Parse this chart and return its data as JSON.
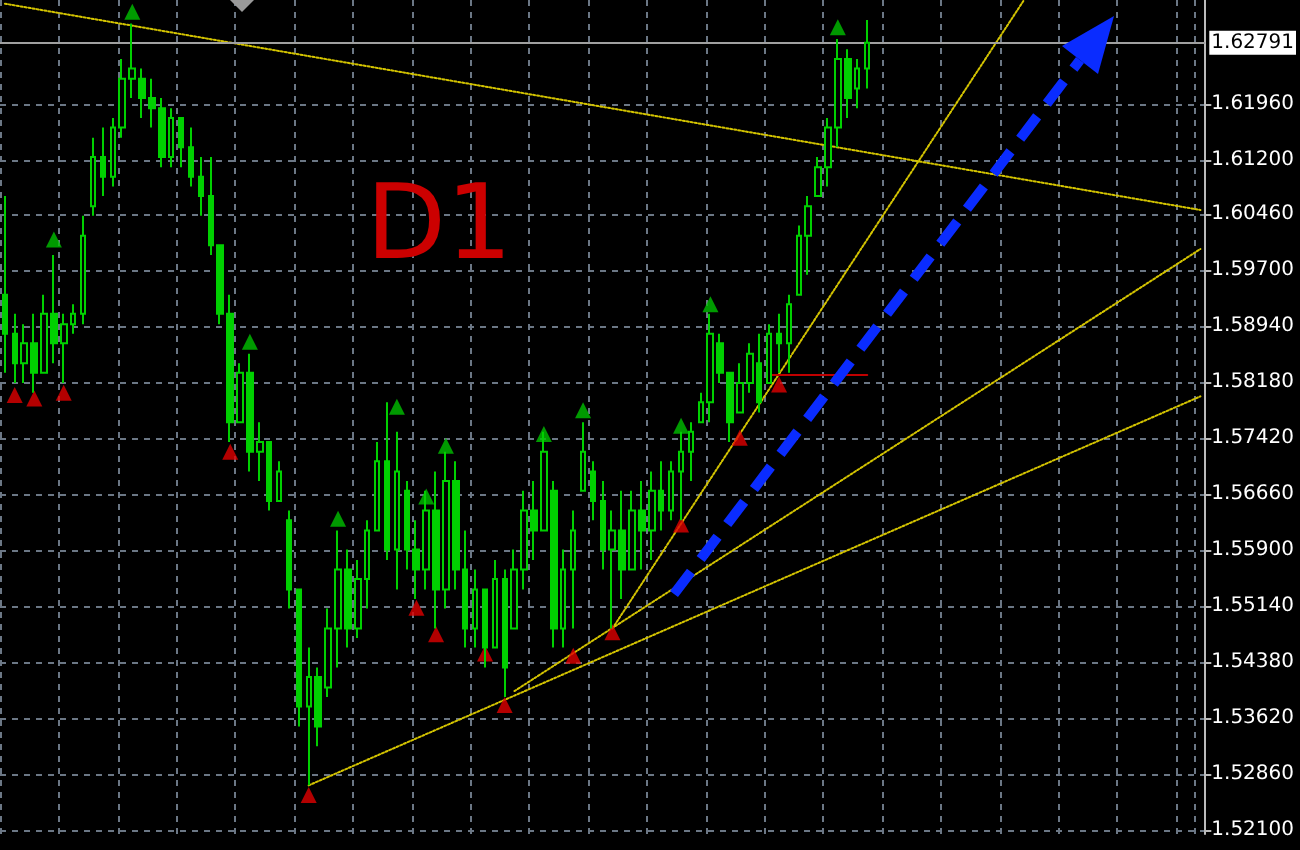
{
  "chart_data": {
    "type": "candlestick",
    "color": "#00d000",
    "annotations": [
      "D1"
    ],
    "grid": true,
    "tick_labels": "y",
    "categories": [
      null,
      null,
      null,
      null,
      null,
      null,
      null,
      null,
      null,
      null,
      null,
      null,
      null,
      null,
      null,
      null,
      null,
      null,
      null,
      null,
      null,
      null,
      null,
      null,
      null,
      null,
      null,
      null,
      null,
      null,
      null,
      null,
      null,
      null,
      null,
      null,
      null,
      null,
      null,
      null,
      null,
      null,
      null,
      null,
      null,
      null,
      null,
      null,
      null,
      null,
      null,
      null,
      null,
      null,
      null,
      null,
      null,
      null,
      null,
      null,
      null,
      null,
      null,
      null,
      null,
      null,
      null,
      null,
      null,
      null,
      null,
      null,
      null,
      null,
      null,
      null,
      null,
      null,
      null,
      null,
      null,
      null,
      null,
      null,
      null,
      null,
      null,
      null,
      null,
      null,
      null,
      null,
      null,
      null,
      null,
      null,
      null,
      null,
      null,
      null,
      null,
      null,
      null,
      null,
      null,
      null,
      null,
      null,
      null,
      null,
      null,
      null,
      null,
      null,
      null,
      null,
      null,
      null,
      null,
      null,
      null,
      null,
      null
    ],
    "ylim": [
      1.5205,
      1.6337
    ],
    "yticks": [
      {
        "value": 1.521,
        "label": "1.52100"
      },
      {
        "value": 1.5286,
        "label": "1.52860"
      },
      {
        "value": 1.5362,
        "label": "1.53620"
      },
      {
        "value": 1.5438,
        "label": "1.54380"
      },
      {
        "value": 1.5514,
        "label": "1.55140"
      },
      {
        "value": 1.559,
        "label": "1.55900"
      },
      {
        "value": 1.5666,
        "label": "1.56660"
      },
      {
        "value": 1.5742,
        "label": "1.57420"
      },
      {
        "value": 1.5818,
        "label": "1.58180"
      },
      {
        "value": 1.5894,
        "label": "1.58940"
      },
      {
        "value": 1.597,
        "label": "1.59700"
      },
      {
        "value": 1.6046,
        "label": "1.60460"
      },
      {
        "value": 1.612,
        "label": "1.61200"
      },
      {
        "value": 1.6196,
        "label": "1.61960"
      }
    ],
    "ref_lines": [
      {
        "axis": "y",
        "value": 1.62791,
        "label": "1.62791",
        "color": "#a0a0a0",
        "line_style": "solid"
      }
    ],
    "ohlc": [
      [
        1.5937,
        1.6071,
        1.5831,
        1.5884
      ],
      [
        1.5884,
        1.5911,
        1.5817,
        1.5844
      ],
      [
        1.5844,
        1.5897,
        1.5817,
        1.5871
      ],
      [
        1.5871,
        1.5911,
        1.5804,
        1.5831
      ],
      [
        1.5831,
        1.5937,
        1.5831,
        1.5911
      ],
      [
        1.5911,
        1.5991,
        1.5844,
        1.5871
      ],
      [
        1.5871,
        1.5911,
        1.5817,
        1.5897
      ],
      [
        1.5897,
        1.5924,
        1.5884,
        1.5911
      ],
      [
        1.5911,
        1.6044,
        1.5897,
        1.6017
      ],
      [
        1.6057,
        1.615,
        1.6044,
        1.6124
      ],
      [
        1.6124,
        1.6164,
        1.6071,
        1.6097
      ],
      [
        1.6097,
        1.6177,
        1.6084,
        1.6164
      ],
      [
        1.6164,
        1.6257,
        1.615,
        1.623
      ],
      [
        1.623,
        1.6305,
        1.6204,
        1.6244
      ],
      [
        1.623,
        1.6244,
        1.6177,
        1.6204
      ],
      [
        1.6204,
        1.623,
        1.6164,
        1.619
      ],
      [
        1.619,
        1.6204,
        1.611,
        1.6124
      ],
      [
        1.6124,
        1.619,
        1.611,
        1.6177
      ],
      [
        1.6177,
        1.6177,
        1.611,
        1.6137
      ],
      [
        1.6137,
        1.6164,
        1.6084,
        1.6097
      ],
      [
        1.6097,
        1.6124,
        1.6044,
        1.6071
      ],
      [
        1.6071,
        1.6124,
        1.5991,
        1.6004
      ],
      [
        1.6004,
        1.6004,
        1.5897,
        1.5911
      ],
      [
        1.5911,
        1.5937,
        1.5737,
        1.5764
      ],
      [
        1.5764,
        1.5844,
        1.5764,
        1.5831
      ],
      [
        1.5831,
        1.5857,
        1.5697,
        1.5724
      ],
      [
        1.5724,
        1.5764,
        1.5684,
        1.5737
      ],
      [
        1.5737,
        1.5737,
        1.5644,
        1.5657
      ],
      [
        1.5657,
        1.5711,
        1.5657,
        1.5697
      ],
      [
        1.5631,
        1.5644,
        1.5511,
        1.5537
      ],
      [
        1.5537,
        1.5537,
        1.5351,
        1.5378
      ],
      [
        1.5378,
        1.5458,
        1.5271,
        1.5418
      ],
      [
        1.5418,
        1.5431,
        1.5324,
        1.5351
      ],
      [
        1.5404,
        1.5511,
        1.5391,
        1.5484
      ],
      [
        1.5484,
        1.5617,
        1.5431,
        1.5564
      ],
      [
        1.5564,
        1.5591,
        1.5458,
        1.5484
      ],
      [
        1.5484,
        1.5577,
        1.5471,
        1.5551
      ],
      [
        1.5551,
        1.5631,
        1.5511,
        1.5617
      ],
      [
        1.5617,
        1.5737,
        1.5617,
        1.5711
      ],
      [
        1.5711,
        1.5791,
        1.5577,
        1.5591
      ],
      [
        1.5591,
        1.5751,
        1.5537,
        1.5697
      ],
      [
        1.5671,
        1.5684,
        1.5564,
        1.5591
      ],
      [
        1.5591,
        1.5631,
        1.5524,
        1.5564
      ],
      [
        1.5564,
        1.5671,
        1.5537,
        1.5644
      ],
      [
        1.5644,
        1.5697,
        1.5484,
        1.5537
      ],
      [
        1.5537,
        1.5724,
        1.5511,
        1.5684
      ],
      [
        1.5684,
        1.5711,
        1.5537,
        1.5564
      ],
      [
        1.5564,
        1.5617,
        1.5458,
        1.5484
      ],
      [
        1.5484,
        1.5564,
        1.5458,
        1.5537
      ],
      [
        1.5537,
        1.5537,
        1.5431,
        1.5458
      ],
      [
        1.5458,
        1.5577,
        1.5458,
        1.5551
      ],
      [
        1.5551,
        1.5564,
        1.5391,
        1.5431
      ],
      [
        1.5484,
        1.5591,
        1.5484,
        1.5564
      ],
      [
        1.5564,
        1.5671,
        1.5537,
        1.5644
      ],
      [
        1.5644,
        1.5684,
        1.5577,
        1.5617
      ],
      [
        1.5617,
        1.5751,
        1.5617,
        1.5724
      ],
      [
        1.5671,
        1.5684,
        1.5458,
        1.5484
      ],
      [
        1.5484,
        1.5591,
        1.5458,
        1.5564
      ],
      [
        1.5564,
        1.5644,
        1.5484,
        1.5617
      ],
      [
        1.5671,
        1.5764,
        1.5671,
        1.5724
      ],
      [
        1.5697,
        1.5711,
        1.5631,
        1.5657
      ],
      [
        1.5657,
        1.5684,
        1.5564,
        1.5591
      ],
      [
        1.5591,
        1.5644,
        1.5484,
        1.5617
      ],
      [
        1.5617,
        1.5671,
        1.5524,
        1.5564
      ],
      [
        1.5564,
        1.5671,
        1.5564,
        1.5644
      ],
      [
        1.5644,
        1.5684,
        1.5564,
        1.5617
      ],
      [
        1.5617,
        1.5697,
        1.5577,
        1.5671
      ],
      [
        1.5671,
        1.5711,
        1.5617,
        1.5644
      ],
      [
        1.5644,
        1.5711,
        1.5631,
        1.5697
      ],
      [
        1.5697,
        1.5751,
        1.5631,
        1.5724
      ],
      [
        1.5724,
        1.5764,
        1.5684,
        1.5751
      ],
      [
        1.5764,
        1.5804,
        1.5764,
        1.5791
      ],
      [
        1.5791,
        1.5911,
        1.5764,
        1.5884
      ],
      [
        1.5871,
        1.5884,
        1.5817,
        1.5831
      ],
      [
        1.5831,
        1.5831,
        1.5737,
        1.5764
      ],
      [
        1.5777,
        1.5844,
        1.5777,
        1.5817
      ],
      [
        1.5817,
        1.5871,
        1.5804,
        1.5857
      ],
      [
        1.5844,
        1.5884,
        1.5777,
        1.5791
      ],
      [
        1.5817,
        1.5897,
        1.5817,
        1.5884
      ],
      [
        1.5884,
        1.5911,
        1.5831,
        1.5871
      ],
      [
        1.5871,
        1.5937,
        1.5831,
        1.5924
      ],
      [
        1.5937,
        1.6031,
        1.5937,
        1.6017
      ],
      [
        1.6017,
        1.6071,
        1.5964,
        1.6057
      ],
      [
        1.6071,
        1.6124,
        1.6071,
        1.611
      ],
      [
        1.611,
        1.6177,
        1.6084,
        1.6164
      ],
      [
        1.6164,
        1.6284,
        1.6137,
        1.6257
      ],
      [
        1.6257,
        1.627,
        1.6177,
        1.6204
      ],
      [
        1.6217,
        1.6257,
        1.619,
        1.6244
      ],
      [
        1.6244,
        1.631,
        1.6217,
        1.6279
      ],
      null,
      null,
      null,
      null,
      null,
      null,
      null,
      null,
      null,
      null,
      null,
      null,
      null,
      null,
      null,
      null,
      null,
      null,
      null,
      null,
      null,
      null,
      null,
      null,
      null,
      null,
      null,
      null,
      null,
      null,
      null,
      null,
      null,
      null
    ],
    "series": [
      {
        "type": "scatter",
        "color": "#00c000",
        "marker": "triangle",
        "values": [
          null,
          null,
          null,
          null,
          null,
          1.6012,
          null,
          null,
          null,
          null,
          null,
          null,
          null,
          1.6321,
          null,
          null,
          null,
          null,
          null,
          null,
          null,
          null,
          null,
          null,
          null,
          1.5873,
          null,
          null,
          null,
          null,
          null,
          null,
          null,
          null,
          1.5633,
          null,
          null,
          null,
          null,
          null,
          1.5785,
          null,
          null,
          1.5663,
          null,
          1.5732,
          null,
          null,
          null,
          null,
          null,
          null,
          null,
          null,
          null,
          1.5748,
          null,
          null,
          null,
          1.578,
          null,
          null,
          null,
          null,
          null,
          null,
          null,
          null,
          null,
          1.5759,
          null,
          null,
          1.5924,
          null,
          null,
          null,
          null,
          null,
          null,
          null,
          null,
          null,
          null,
          null,
          null,
          1.63,
          null,
          null,
          null,
          null,
          null,
          null,
          null,
          null,
          null,
          null,
          null,
          null,
          null,
          null,
          null,
          null,
          null,
          null,
          null,
          null,
          null,
          null,
          null,
          null,
          null,
          null,
          null,
          null,
          null,
          null,
          null,
          null,
          null,
          null,
          null,
          null,
          null
        ]
      },
      {
        "type": "scatter",
        "color": "#e00000",
        "marker": "triangle",
        "values": [
          null,
          1.5801,
          null,
          1.5796,
          null,
          null,
          1.5804,
          null,
          null,
          null,
          null,
          null,
          null,
          null,
          null,
          null,
          null,
          null,
          null,
          null,
          null,
          null,
          null,
          1.5724,
          null,
          null,
          null,
          null,
          null,
          null,
          null,
          1.5258,
          null,
          null,
          null,
          null,
          null,
          null,
          null,
          null,
          null,
          null,
          1.5512,
          null,
          1.5476,
          null,
          null,
          null,
          null,
          1.545,
          null,
          1.538,
          null,
          null,
          null,
          null,
          null,
          null,
          1.5447,
          null,
          null,
          null,
          1.5479,
          null,
          null,
          null,
          null,
          null,
          null,
          1.5625,
          null,
          null,
          null,
          null,
          null,
          1.5743,
          null,
          null,
          null,
          1.5815,
          null,
          null,
          null,
          null,
          null,
          null,
          null,
          null,
          null,
          null,
          null,
          null,
          null,
          null,
          null,
          null,
          null,
          null,
          null,
          null,
          null,
          null,
          null,
          null,
          null,
          null,
          null,
          null,
          null,
          null,
          null,
          null,
          null,
          null,
          null,
          null,
          null,
          null,
          null,
          null,
          null,
          null,
          null
        ]
      },
      {
        "type": "line",
        "color": "#d4c400",
        "marker": "none",
        "line_style": "dotted",
        "values": [
          1.6332,
          null,
          null,
          null,
          null,
          null,
          null,
          null,
          null,
          null,
          null,
          null,
          null,
          null,
          null,
          null,
          null,
          null,
          null,
          null,
          null,
          null,
          null,
          null,
          null,
          null,
          null,
          null,
          null,
          null,
          null,
          null,
          null,
          null,
          null,
          null,
          null,
          null,
          null,
          null,
          null,
          null,
          null,
          null,
          null,
          null,
          null,
          null,
          null,
          null,
          null,
          null,
          null,
          null,
          null,
          null,
          null,
          null,
          null,
          null,
          null,
          null,
          null,
          null,
          null,
          null,
          null,
          null,
          null,
          null,
          null,
          null,
          null,
          null,
          null,
          null,
          null,
          null,
          null,
          null,
          null,
          null,
          null,
          null,
          null,
          null,
          null,
          null,
          null,
          null,
          null,
          null,
          null,
          null,
          null,
          null,
          null,
          null,
          null,
          null,
          null,
          null,
          null,
          null,
          null,
          null,
          null,
          null,
          null,
          null,
          null,
          null,
          null,
          null,
          null,
          null,
          null,
          null,
          null,
          null,
          null,
          null,
          1.6052
        ]
      },
      {
        "type": "line",
        "color": "#d4c400",
        "marker": "none",
        "line_style": "dotted",
        "values": [
          null,
          null,
          null,
          null,
          null,
          null,
          null,
          null,
          null,
          null,
          null,
          null,
          null,
          null,
          null,
          null,
          null,
          null,
          null,
          null,
          null,
          null,
          null,
          null,
          null,
          null,
          null,
          null,
          null,
          null,
          null,
          1.5271,
          null,
          null,
          null,
          null,
          null,
          null,
          null,
          null,
          null,
          null,
          null,
          null,
          null,
          null,
          null,
          null,
          null,
          null,
          null,
          null,
          null,
          null,
          null,
          null,
          null,
          null,
          null,
          null,
          null,
          null,
          null,
          null,
          null,
          null,
          null,
          null,
          null,
          null,
          null,
          null,
          null,
          null,
          null,
          null,
          null,
          null,
          null,
          null,
          null,
          null,
          null,
          null,
          null,
          null,
          null,
          null,
          null,
          null,
          null,
          null,
          null,
          null,
          null,
          null,
          null,
          null,
          null,
          null,
          null,
          null,
          null,
          null,
          null,
          null,
          null,
          null,
          null,
          null,
          null,
          null,
          null,
          null,
          null,
          null,
          null,
          null,
          null,
          null,
          null,
          null,
          1.5799
        ]
      },
      {
        "type": "line",
        "color": "#d4c400",
        "marker": "none",
        "line_style": "dotted",
        "values": [
          null,
          null,
          null,
          null,
          null,
          null,
          null,
          null,
          null,
          null,
          null,
          null,
          null,
          null,
          null,
          null,
          null,
          null,
          null,
          null,
          null,
          null,
          null,
          null,
          null,
          null,
          null,
          null,
          null,
          null,
          null,
          null,
          null,
          null,
          null,
          null,
          null,
          null,
          null,
          null,
          null,
          null,
          null,
          null,
          null,
          null,
          null,
          null,
          null,
          null,
          null,
          null,
          1.5399,
          null,
          null,
          null,
          null,
          null,
          null,
          null,
          null,
          null,
          null,
          null,
          null,
          null,
          null,
          null,
          null,
          null,
          null,
          null,
          null,
          null,
          null,
          null,
          null,
          null,
          null,
          null,
          null,
          null,
          null,
          null,
          null,
          null,
          null,
          null,
          null,
          null,
          null,
          null,
          null,
          null,
          null,
          null,
          null,
          null,
          null,
          null,
          null,
          null,
          null,
          null,
          null,
          null,
          null,
          null,
          null,
          null,
          null,
          null,
          null,
          null,
          null,
          null,
          null,
          null,
          null,
          null,
          null,
          null,
          1.5999
        ]
      },
      {
        "type": "line",
        "color": "#d4c400",
        "marker": "none",
        "line_style": "dotted",
        "values": [
          null,
          null,
          null,
          null,
          null,
          null,
          null,
          null,
          null,
          null,
          null,
          null,
          null,
          null,
          null,
          null,
          null,
          null,
          null,
          null,
          null,
          null,
          null,
          null,
          null,
          null,
          null,
          null,
          null,
          null,
          null,
          null,
          null,
          null,
          null,
          null,
          null,
          null,
          null,
          null,
          null,
          null,
          null,
          null,
          null,
          null,
          null,
          null,
          null,
          null,
          null,
          null,
          null,
          null,
          null,
          null,
          null,
          null,
          null,
          null,
          null,
          null,
          1.5484,
          null,
          null,
          null,
          null,
          null,
          null,
          null,
          null,
          null,
          null,
          null,
          null,
          null,
          null,
          null,
          null,
          null,
          null,
          null,
          null,
          null,
          null,
          null,
          null,
          null,
          null,
          null,
          null,
          null,
          null,
          null,
          null,
          null,
          null,
          null,
          null,
          null,
          null,
          null,
          null,
          null,
          1.6337,
          null,
          null,
          null,
          null,
          null,
          null,
          null,
          null,
          null,
          null,
          null,
          null,
          null,
          null,
          null,
          null,
          null,
          null
        ]
      },
      {
        "type": "line",
        "color": "#c00000",
        "marker": "none",
        "line_style": "solid",
        "values": [
          null,
          null,
          null,
          null,
          null,
          null,
          null,
          null,
          null,
          null,
          null,
          null,
          null,
          null,
          null,
          null,
          null,
          null,
          null,
          null,
          null,
          null,
          null,
          null,
          null,
          null,
          null,
          null,
          null,
          null,
          null,
          null,
          null,
          null,
          null,
          null,
          null,
          null,
          null,
          null,
          null,
          null,
          null,
          null,
          null,
          null,
          null,
          null,
          null,
          null,
          null,
          null,
          null,
          null,
          null,
          null,
          null,
          null,
          null,
          null,
          null,
          null,
          null,
          null,
          null,
          null,
          null,
          null,
          null,
          null,
          null,
          null,
          null,
          null,
          null,
          null,
          null,
          null,
          1.5828,
          null,
          null,
          null,
          null,
          null,
          null,
          null,
          null,
          null,
          1.5828,
          null,
          null,
          null,
          null,
          null,
          null,
          null,
          null,
          null,
          null,
          null,
          null,
          null,
          null,
          null,
          null,
          null,
          null,
          null,
          null,
          null,
          null,
          null,
          null,
          null,
          null,
          null,
          null,
          null,
          null,
          null,
          null,
          null,
          null
        ]
      }
    ]
  }
}
